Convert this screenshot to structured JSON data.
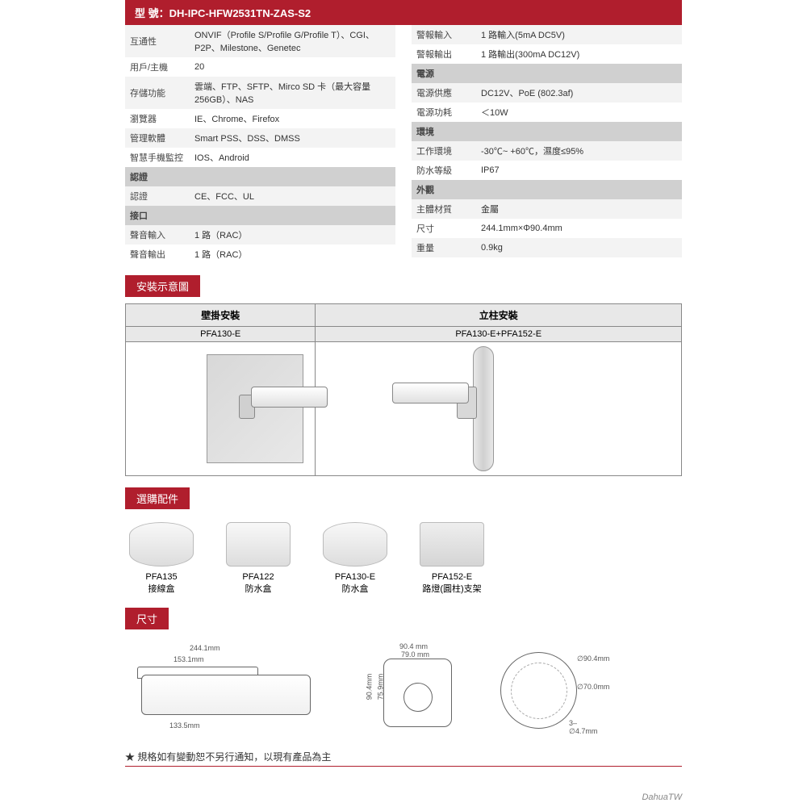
{
  "title_prefix": "型 號：",
  "model": "DH-IPC-HFW2531TN-ZAS-S2",
  "specs_left": [
    {
      "label": "互通性",
      "value": "ONVIF（Profile S/Profile G/Profile T）、CGI、P2P、Milestone、Genetec",
      "alt": true
    },
    {
      "label": "用戶/主機",
      "value": "20",
      "alt": false
    },
    {
      "label": "存儲功能",
      "value": "雲端、FTP、SFTP、Mirco SD 卡（最大容量256GB）、NAS",
      "alt": true
    },
    {
      "label": "瀏覽器",
      "value": "IE、Chrome、Firefox",
      "alt": false
    },
    {
      "label": "管理軟體",
      "value": "Smart PSS、DSS、DMSS",
      "alt": true
    },
    {
      "label": "智慧手機監控",
      "value": "IOS、Android",
      "alt": false
    }
  ],
  "left_headers": [
    {
      "text": "認證"
    },
    {
      "rows": [
        {
          "label": "認證",
          "value": "CE、FCC、UL",
          "alt": true
        }
      ]
    },
    {
      "text": "接口"
    },
    {
      "rows": [
        {
          "label": "聲音輸入",
          "value": "1 路（RAC）",
          "alt": true
        },
        {
          "label": "聲音輸出",
          "value": "1 路（RAC）",
          "alt": false
        }
      ]
    }
  ],
  "specs_right_top": [
    {
      "label": "警報輸入",
      "value": "1 路輸入(5mA DC5V)",
      "alt": true
    },
    {
      "label": "警報輸出",
      "value": "1 路輸出(300mA DC12V)",
      "alt": false
    }
  ],
  "right_sections": [
    {
      "header": "電源",
      "rows": [
        {
          "label": "電源供應",
          "value": "DC12V、PoE (802.3af)",
          "alt": true
        },
        {
          "label": "電源功耗",
          "value": "＜10W",
          "alt": false
        }
      ]
    },
    {
      "header": "環境",
      "rows": [
        {
          "label": "工作環境",
          "value": "-30℃~ +60℃，濕度≤95%",
          "alt": true
        },
        {
          "label": "防水等級",
          "value": "IP67",
          "alt": false
        }
      ]
    },
    {
      "header": "外觀",
      "rows": [
        {
          "label": "主體材質",
          "value": "金屬",
          "alt": true
        },
        {
          "label": "尺寸",
          "value": "244.1mm×Φ90.4mm",
          "alt": false
        },
        {
          "label": "重量",
          "value": "0.9kg",
          "alt": true
        }
      ]
    }
  ],
  "install_section": "安裝示意圖",
  "install": {
    "wall": {
      "title": "壁掛安裝",
      "code": "PFA130-E"
    },
    "pole": {
      "title": "立柱安裝",
      "code": "PFA130-E+PFA152-E"
    }
  },
  "accessories_section": "選購配件",
  "accessories": [
    {
      "code": "PFA135",
      "name": "接線盒"
    },
    {
      "code": "PFA122",
      "name": "防水盒"
    },
    {
      "code": "PFA130-E",
      "name": "防水盒"
    },
    {
      "code": "PFA152-E",
      "name": "路燈(圓柱)支架"
    }
  ],
  "dim_section": "尺寸",
  "dims": {
    "total_w": "244.1mm",
    "body_w": "153.1mm",
    "base_w": "133.5mm",
    "front_w": "90.4 mm",
    "front_inner": "79.0 mm",
    "front_h": "75.9mm",
    "front_total_h": "90.4mm",
    "back_outer": "∅90.4mm",
    "back_inner": "∅70.0mm",
    "back_holes": "3–∅4.7mm"
  },
  "footer": "★ 規格如有變動恕不另行通知，以現有產品為主",
  "brand": "DahuaTW",
  "colors": {
    "accent": "#b01e2d"
  }
}
